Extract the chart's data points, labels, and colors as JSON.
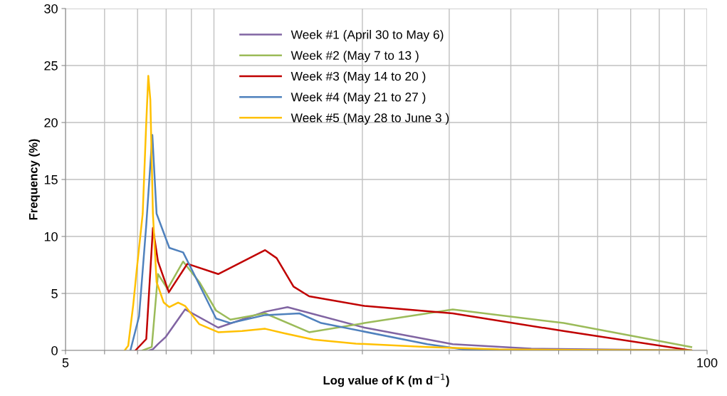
{
  "chart_data": {
    "type": "line",
    "xlabel": "Log value of K (m d$^{−1}$)",
    "ylabel": "Frequency (%)",
    "log": "x",
    "xlim": [
      5,
      100
    ],
    "ylim": [
      0,
      30
    ],
    "yticks": [
      0,
      5,
      10,
      15,
      20,
      25,
      30
    ],
    "xticks": [
      5,
      {
        "value": 6,
        "label": null
      },
      {
        "value": 7,
        "label": null
      },
      {
        "value": 8,
        "label": null
      },
      {
        "value": 9,
        "label": null
      },
      {
        "value": 10,
        "label": null
      },
      {
        "value": 20,
        "label": null
      },
      {
        "value": 30,
        "label": null
      },
      {
        "value": 40,
        "label": null
      },
      {
        "value": 50,
        "label": null
      },
      {
        "value": 60,
        "label": null
      },
      {
        "value": 70,
        "label": null
      },
      {
        "value": 80,
        "label": null
      },
      {
        "value": 90,
        "label": null
      },
      100
    ],
    "grid": true,
    "legend": "top",
    "marker": "none",
    "line_style": "solid",
    "series": [
      {
        "name": "Week #1 (April 30 to May 6)",
        "color": "#8064a2",
        "x": [
          7.4,
          7.52,
          7.7,
          7.99,
          8.74,
          10.2,
          12.7,
          14.1,
          20.2,
          30.5,
          44.0,
          92.9
        ],
        "values": [
          0,
          0.1,
          0.55,
          1.2,
          3.6,
          2.0,
          3.4,
          3.8,
          2.0,
          0.55,
          0.15,
          0
        ]
      },
      {
        "name": "Week #2 (May 7 to 13 )",
        "color": "#9bbb59",
        "x": [
          7.17,
          7.48,
          7.7,
          8.05,
          8.66,
          9.34,
          10.1,
          10.8,
          12.7,
          15.6,
          20.2,
          30.5,
          51.2,
          92.9
        ],
        "values": [
          0,
          0.3,
          6.7,
          5.4,
          7.8,
          6.0,
          3.5,
          2.7,
          3.25,
          1.6,
          2.4,
          3.6,
          2.4,
          0.3
        ]
      },
      {
        "name": "Week #3 (May 14 to 20 )",
        "color": "#c00000",
        "x": [
          6.93,
          7.29,
          7.52,
          7.7,
          8.1,
          8.83,
          10.2,
          12.7,
          13.4,
          14.5,
          15.6,
          20.2,
          30.5,
          51.2,
          92.9
        ],
        "values": [
          0,
          1.0,
          10.75,
          7.8,
          5.1,
          7.6,
          6.7,
          8.8,
          8.1,
          5.6,
          4.75,
          3.9,
          3.25,
          1.7,
          0
        ]
      },
      {
        "name": "Week #4 (May 21 to 27 )",
        "color": "#4f81bd",
        "x": [
          6.77,
          7.05,
          7.29,
          7.5,
          7.65,
          8.12,
          8.66,
          9.04,
          10.1,
          10.8,
          12.7,
          14.9,
          16.5,
          27.1,
          32.0,
          37.8,
          92.9
        ],
        "values": [
          0,
          3.0,
          11.0,
          18.9,
          12.0,
          9.0,
          8.6,
          7.0,
          2.8,
          2.4,
          3.1,
          3.25,
          2.4,
          0.55,
          0.1,
          0,
          0
        ]
      },
      {
        "name": "Week #5 (May 28 to June 3 )",
        "color": "#ffc000",
        "x": [
          6.59,
          6.7,
          6.86,
          6.97,
          7.17,
          7.29,
          7.36,
          7.43,
          7.52,
          7.65,
          7.91,
          8.12,
          8.46,
          8.74,
          9.34,
          10.2,
          11.4,
          12.7,
          13.9,
          15.9,
          19.4,
          27.1,
          37.8,
          52.7,
          92.9
        ],
        "values": [
          0,
          0.4,
          4.0,
          7.0,
          12.0,
          20.0,
          24.1,
          22.0,
          12.0,
          6.0,
          4.2,
          3.8,
          4.2,
          3.9,
          2.3,
          1.6,
          1.7,
          1.9,
          1.5,
          0.95,
          0.6,
          0.3,
          0.1,
          0.05,
          0
        ]
      }
    ]
  }
}
